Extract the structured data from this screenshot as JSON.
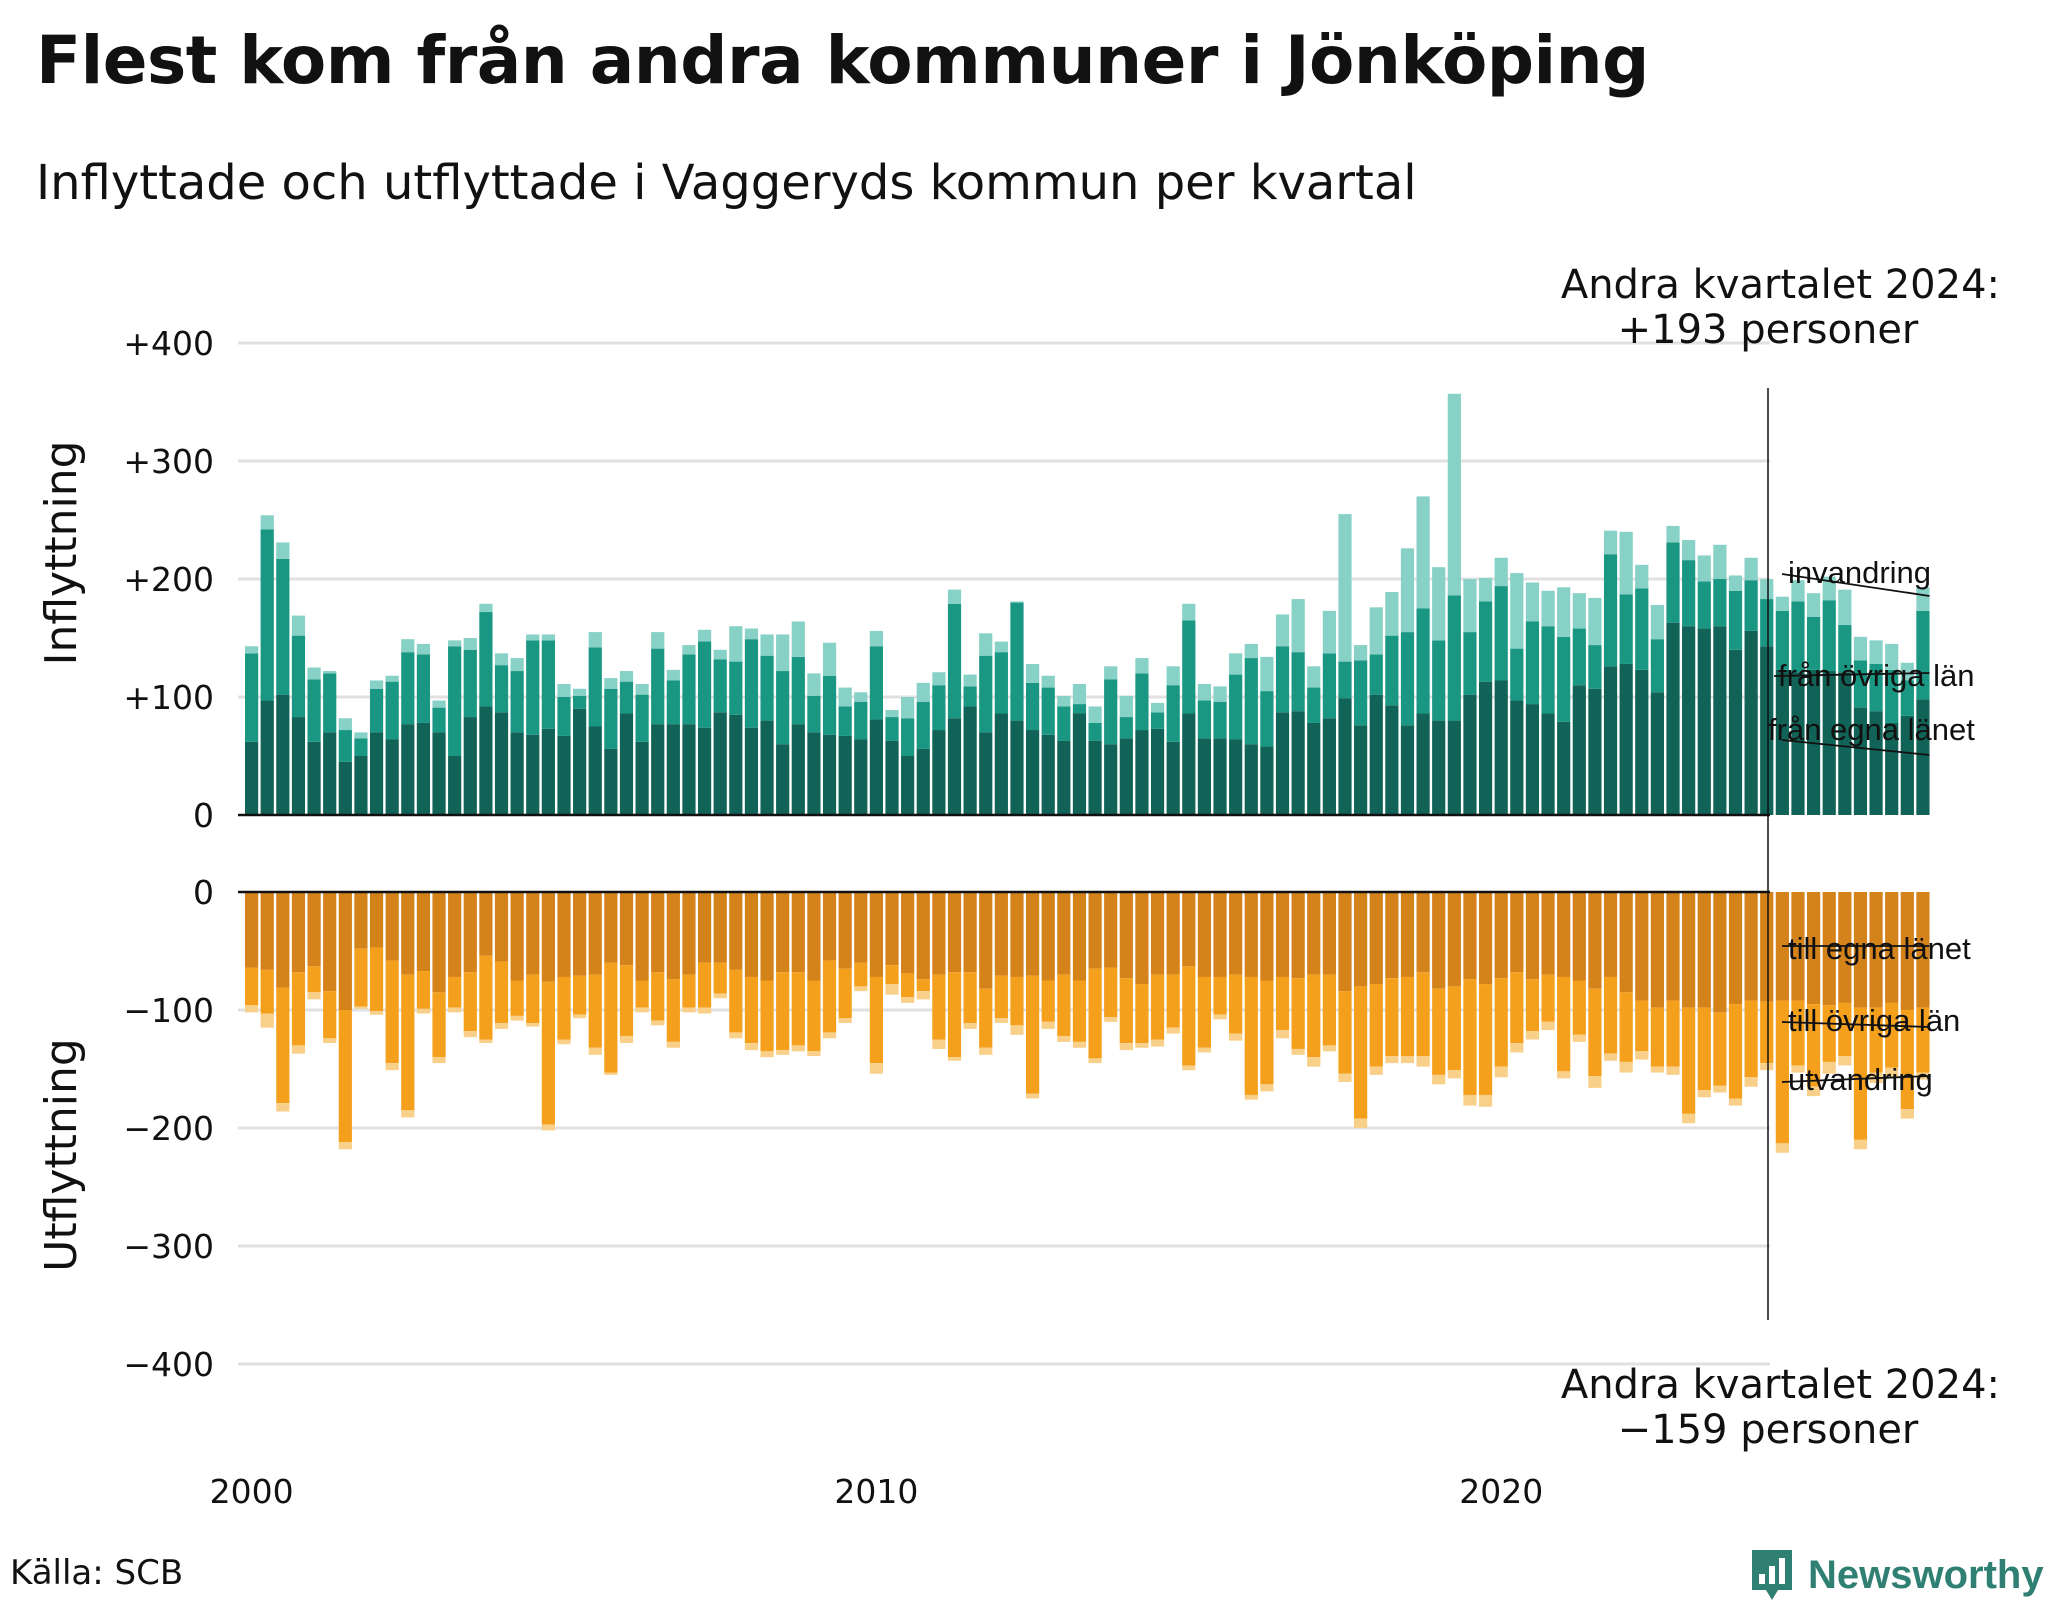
{
  "title": "Flest kom från andra kommuner i Jönköping",
  "subtitle": "Inflyttade och utflyttade i Vaggeryds kommun per kvartal",
  "source": "Källa: SCB",
  "brand": "Newsworthy",
  "chart_data": {
    "type": "bar",
    "stacked": true,
    "x_start": "2000 Q1",
    "x_ticks": [
      "2000",
      "2010",
      "2020"
    ],
    "grid": true,
    "panels": [
      {
        "ylabel": "Inflyttning",
        "ylim": [
          0,
          400
        ],
        "y_ticks": [
          "0",
          "+100",
          "+200",
          "+300",
          "+400"
        ],
        "series": [
          {
            "name": "från egna länet",
            "color": "#116357",
            "values": [
              62,
              97,
              102,
              83,
              62,
              70,
              45,
              50,
              70,
              64,
              77,
              78,
              70,
              50,
              83,
              92,
              87,
              70,
              68,
              73,
              67,
              90,
              75,
              56,
              86,
              62,
              77,
              77,
              77,
              74,
              87,
              85,
              74,
              80,
              60,
              77,
              70,
              68,
              67,
              64,
              81,
              63,
              50,
              56,
              72,
              82,
              92,
              70,
              86,
              80,
              72,
              68,
              63,
              86,
              63,
              60,
              65,
              72,
              73,
              62,
              86,
              65,
              65,
              64,
              60,
              58,
              87,
              88,
              78,
              82,
              99,
              76,
              102,
              93,
              76,
              86,
              80,
              80,
              102,
              113,
              114,
              97,
              94,
              86,
              79,
              110,
              107,
              126,
              128,
              123,
              104,
              163,
              160,
              158,
              160,
              140,
              156,
              143,
              123,
              121,
              123,
              122,
              121,
              91,
              88,
              78,
              84,
              98
            ]
          },
          {
            "name": "från övriga län",
            "color": "#1a9783",
            "values": [
              75,
              145,
              115,
              69,
              53,
              50,
              27,
              15,
              37,
              49,
              61,
              58,
              21,
              93,
              57,
              80,
              40,
              52,
              80,
              75,
              33,
              11,
              67,
              51,
              27,
              40,
              64,
              37,
              59,
              73,
              45,
              45,
              75,
              55,
              62,
              57,
              31,
              50,
              25,
              32,
              62,
              20,
              32,
              40,
              38,
              97,
              17,
              65,
              52,
              100,
              40,
              40,
              29,
              8,
              15,
              55,
              18,
              48,
              14,
              48,
              79,
              32,
              31,
              55,
              73,
              47,
              56,
              50,
              30,
              55,
              31,
              55,
              34,
              59,
              79,
              89,
              68,
              106,
              53,
              68,
              80,
              44,
              70,
              74,
              72,
              48,
              37,
              95,
              59,
              69,
              45,
              68,
              56,
              40,
              40,
              50,
              43,
              40,
              50,
              60,
              45,
              60,
              40,
              40,
              40,
              45,
              30,
              75
            ]
          },
          {
            "name": "invandring",
            "color": "#87d1c6",
            "values": [
              6,
              12,
              14,
              17,
              10,
              2,
              10,
              5,
              7,
              5,
              11,
              9,
              6,
              5,
              10,
              7,
              10,
              11,
              5,
              5,
              11,
              6,
              13,
              9,
              9,
              9,
              14,
              9,
              8,
              10,
              8,
              30,
              9,
              18,
              31,
              30,
              19,
              28,
              16,
              8,
              13,
              6,
              18,
              16,
              11,
              12,
              10,
              19,
              9,
              1,
              16,
              10,
              9,
              17,
              14,
              11,
              18,
              13,
              8,
              16,
              14,
              14,
              13,
              18,
              12,
              29,
              27,
              45,
              18,
              36,
              125,
              13,
              40,
              37,
              71,
              95,
              62,
              171,
              45,
              20,
              24,
              64,
              33,
              30,
              42,
              30,
              40,
              20,
              53,
              20,
              29,
              14,
              17,
              22,
              29,
              13,
              19,
              17,
              12,
              18,
              20,
              20,
              30,
              20,
              20,
              22,
              15,
              20
            ]
          }
        ]
      },
      {
        "ylabel": "Utflyttning",
        "ylim": [
          -400,
          0
        ],
        "y_ticks": [
          "0",
          "−100",
          "−200",
          "−300",
          "−400"
        ],
        "series": [
          {
            "name": "till egna länet",
            "color": "#d4821a",
            "values": [
              -64,
              -66,
              -81,
              -68,
              -63,
              -84,
              -100,
              -48,
              -47,
              -58,
              -70,
              -67,
              -85,
              -72,
              -68,
              -54,
              -59,
              -75,
              -70,
              -76,
              -72,
              -71,
              -70,
              -60,
              -62,
              -75,
              -68,
              -74,
              -70,
              -60,
              -60,
              -66,
              -72,
              -75,
              -68,
              -68,
              -75,
              -58,
              -65,
              -60,
              -72,
              -62,
              -69,
              -74,
              -70,
              -68,
              -68,
              -82,
              -71,
              -72,
              -71,
              -75,
              -70,
              -75,
              -65,
              -64,
              -73,
              -78,
              -70,
              -70,
              -63,
              -72,
              -72,
              -70,
              -72,
              -75,
              -72,
              -73,
              -70,
              -70,
              -84,
              -80,
              -78,
              -73,
              -72,
              -68,
              -82,
              -80,
              -74,
              -78,
              -73,
              -68,
              -74,
              -70,
              -72,
              -75,
              -82,
              -72,
              -85,
              -92,
              -98,
              -92,
              -98,
              -98,
              -102,
              -95,
              -92,
              -93,
              -92,
              -92,
              -95,
              -96,
              -94,
              -98,
              -98,
              -94,
              -100,
              -98
            ]
          },
          {
            "name": "till övriga län",
            "color": "#f5a01c",
            "values": [
              -32,
              -37,
              -98,
              -62,
              -22,
              -40,
              -112,
              -49,
              -54,
              -87,
              -115,
              -32,
              -55,
              -26,
              -50,
              -71,
              -52,
              -30,
              -41,
              -121,
              -53,
              -33,
              -62,
              -93,
              -60,
              -23,
              -41,
              -53,
              -28,
              -38,
              -26,
              -53,
              -56,
              -60,
              -66,
              -62,
              -60,
              -61,
              -42,
              -20,
              -73,
              -16,
              -20,
              -10,
              -55,
              -72,
              -43,
              -50,
              -36,
              -41,
              -100,
              -35,
              -52,
              -52,
              -76,
              -42,
              -55,
              -50,
              -55,
              -45,
              -84,
              -60,
              -32,
              -50,
              -100,
              -88,
              -45,
              -60,
              -70,
              -60,
              -70,
              -112,
              -70,
              -66,
              -67,
              -71,
              -73,
              -71,
              -98,
              -94,
              -75,
              -60,
              -44,
              -40,
              -80,
              -46,
              -74,
              -65,
              -59,
              -43,
              -50,
              -56,
              -90,
              -70,
              -62,
              -80,
              -65,
              -52,
              -121,
              -55,
              -70,
              -48,
              -45,
              -112,
              -55,
              -55,
              -84,
              -55
            ]
          },
          {
            "name": "utvandring",
            "color": "#f9d089",
            "values": [
              -6,
              -12,
              -7,
              -7,
              -6,
              -4,
              -6,
              -2,
              -3,
              -6,
              -6,
              -4,
              -5,
              -4,
              -5,
              -3,
              -5,
              -4,
              -3,
              -5,
              -4,
              -3,
              -6,
              -2,
              -6,
              -4,
              -4,
              -5,
              -4,
              -5,
              -4,
              -5,
              -6,
              -5,
              -4,
              -5,
              -4,
              -5,
              -4,
              -4,
              -9,
              -9,
              -5,
              -7,
              -8,
              -3,
              -5,
              -6,
              -4,
              -8,
              -4,
              -6,
              -5,
              -5,
              -4,
              -4,
              -6,
              -4,
              -6,
              -5,
              -4,
              -4,
              -4,
              -6,
              -4,
              -6,
              -7,
              -5,
              -8,
              -5,
              -7,
              -8,
              -7,
              -6,
              -6,
              -9,
              -8,
              -7,
              -9,
              -10,
              -9,
              -8,
              -7,
              -7,
              -6,
              -6,
              -10,
              -6,
              -9,
              -7,
              -5,
              -7,
              -8,
              -6,
              -6,
              -6,
              -8,
              -6,
              -8,
              -6,
              -8,
              -10,
              -8,
              -8,
              -9,
              -8,
              -8,
              -6
            ]
          }
        ]
      }
    ],
    "annotations": [
      {
        "line1": "Andra kvartalet 2024:",
        "line2": "+193 personer"
      },
      {
        "line1": "Andra kvartalet 2024:",
        "line2": "−159 personer"
      }
    ]
  }
}
